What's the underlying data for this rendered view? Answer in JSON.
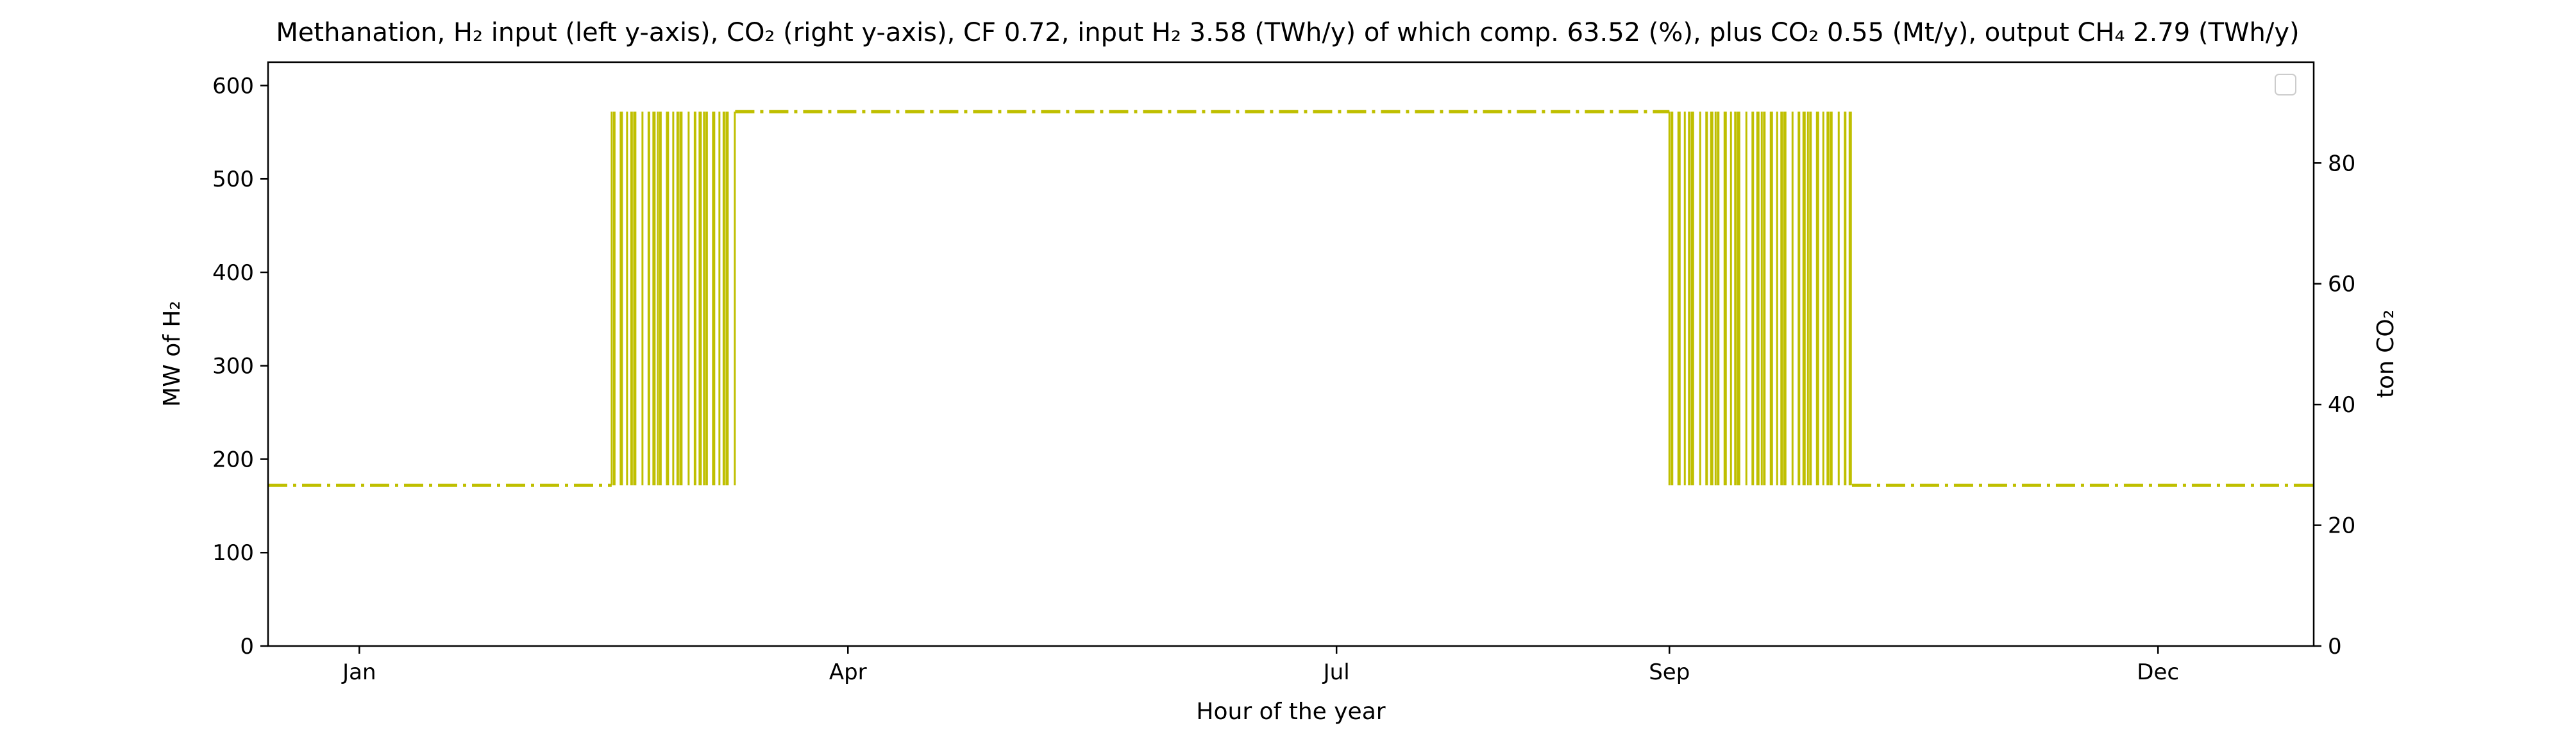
{
  "chart_data": {
    "type": "line",
    "title": "Methanation, H₂ input (left y-axis), CO₂ (right y-axis), CF 0.72, input H₂ 3.58 (TWh/y) of which comp. 63.52 (%), plus CO₂ 0.55 (Mt/y), output CH₄ 2.79 (TWh/y)",
    "xlabel": "Hour of the year",
    "ylabel_left": "MW of H₂",
    "ylabel_right": "ton CO₂",
    "x_ticks": [
      "Jan",
      "Apr",
      "Jul",
      "Sep",
      "Dec"
    ],
    "y_left_ticks": [
      "0",
      "100",
      "200",
      "300",
      "400",
      "500",
      "600"
    ],
    "y_right_ticks": [
      "0",
      "20",
      "40",
      "60",
      "80"
    ],
    "xlim": [
      "2019-12-15",
      "2020-12-30"
    ],
    "ylim_left": [
      0,
      625
    ],
    "ylim_right": [
      0,
      96.7
    ],
    "legend": "top-right",
    "legend_entries": [],
    "grid": false,
    "line_color": "#bfbf00",
    "line_style": "dash-dot",
    "levels": {
      "min_h2_mw": 172,
      "max_h2_mw": 572
    },
    "series": [
      {
        "axis": "left",
        "segments": [
          {
            "from": "2019-12-15",
            "to": "2020-02-17",
            "state": "min"
          },
          {
            "from": "2020-02-17",
            "to": "2020-03-11",
            "state": "switching"
          },
          {
            "from": "2020-03-11",
            "to": "2020-09-01",
            "state": "max"
          },
          {
            "from": "2020-09-01",
            "to": "2020-10-05",
            "state": "switching"
          },
          {
            "from": "2020-10-05",
            "to": "2020-12-30",
            "state": "min"
          }
        ]
      }
    ],
    "t_ticks": [
      "2020-01-01",
      "2020-04-01",
      "2020-07-01",
      "2020-09-01",
      "2020-12-01"
    ]
  }
}
